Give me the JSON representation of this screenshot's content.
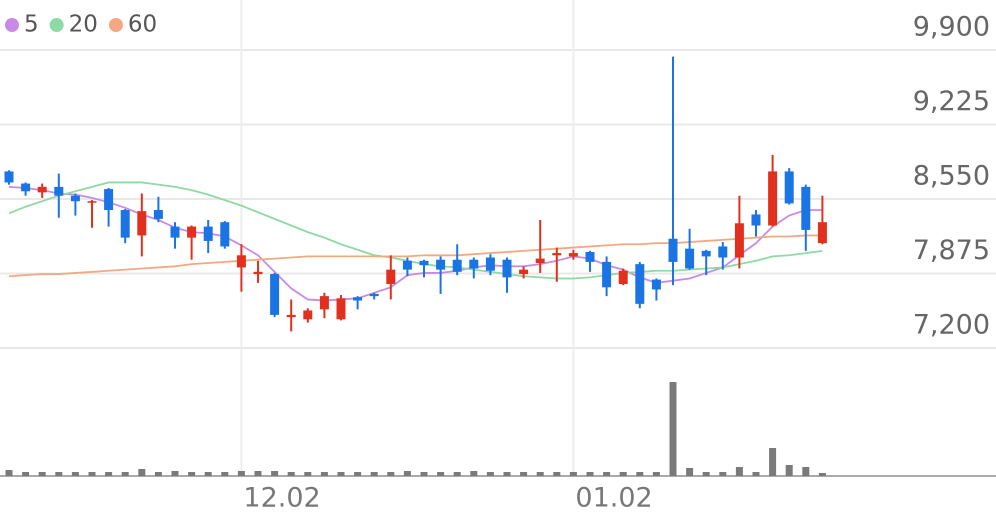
{
  "chart_data": {
    "type": "candlestick",
    "categories": [
      null,
      null,
      null,
      null,
      null,
      null,
      null,
      null,
      null,
      null,
      null,
      null,
      null,
      null,
      "12.02",
      null,
      null,
      null,
      null,
      null,
      null,
      null,
      null,
      null,
      null,
      null,
      null,
      null,
      null,
      null,
      null,
      null,
      null,
      null,
      "01.02",
      null,
      null,
      null,
      null,
      null,
      null,
      null,
      null,
      null,
      null,
      null,
      null,
      null,
      null,
      null
    ],
    "open": [
      8800,
      8690,
      8610,
      8660,
      8580,
      8520,
      8640,
      8450,
      8220,
      8450,
      8300,
      8200,
      8300,
      8340,
      7930,
      7870,
      7870,
      7480,
      7460,
      7550,
      7460,
      7660,
      7690,
      7780,
      7990,
      7990,
      8000,
      8000,
      8000,
      8020,
      8000,
      7870,
      7970,
      8040,
      8030,
      8070,
      7980,
      7780,
      7960,
      7820,
      8190,
      8100,
      8080,
      8120,
      8020,
      8410,
      8310,
      8800,
      8660,
      8150
    ],
    "high": [
      8810,
      8700,
      8690,
      8780,
      8600,
      8540,
      8650,
      8460,
      8600,
      8570,
      8340,
      8310,
      8360,
      8350,
      8140,
      7990,
      7880,
      7640,
      7560,
      7700,
      7680,
      7670,
      7700,
      8040,
      8020,
      8000,
      8030,
      8140,
      8020,
      8050,
      8020,
      7940,
      8360,
      8110,
      8090,
      8080,
      8030,
      7920,
      7980,
      7830,
      9840,
      8280,
      8090,
      8160,
      8580,
      8450,
      8950,
      8830,
      8680,
      8580
    ],
    "low": [
      8680,
      8580,
      8560,
      8380,
      8400,
      8290,
      8300,
      8150,
      8030,
      8340,
      8100,
      8000,
      8060,
      8100,
      7710,
      7790,
      7480,
      7350,
      7430,
      7470,
      7450,
      7550,
      7640,
      7640,
      7850,
      7840,
      7690,
      7860,
      7830,
      7860,
      7700,
      7830,
      7880,
      7800,
      8000,
      7890,
      7670,
      7770,
      7560,
      7630,
      7770,
      7910,
      7860,
      7910,
      7920,
      8210,
      8300,
      8500,
      8080,
      8140
    ],
    "close": [
      8700,
      8620,
      8660,
      8580,
      8530,
      8530,
      8450,
      8200,
      8440,
      8370,
      8200,
      8300,
      8170,
      8120,
      8040,
      7890,
      7500,
      7500,
      7540,
      7670,
      7650,
      7630,
      7670,
      7910,
      7910,
      7950,
      7910,
      7890,
      7920,
      7900,
      7840,
      7910,
      8010,
      8060,
      8060,
      7980,
      7750,
      7900,
      7600,
      7730,
      7980,
      7920,
      8030,
      8020,
      8330,
      8310,
      8800,
      8510,
      8270,
      8340
    ],
    "up_color": "#e2301f",
    "down_color": "#1b74e4",
    "series": [
      {
        "name": "5",
        "color": "#c98ae6",
        "values": [
          8660,
          8650,
          8630,
          8600,
          8590,
          8560,
          8520,
          8470,
          8410,
          8360,
          8290,
          8250,
          8240,
          8210,
          8130,
          8040,
          7890,
          7740,
          7640,
          7630,
          7640,
          7650,
          7700,
          7750,
          7860,
          7880,
          7880,
          7900,
          7930,
          7950,
          7940,
          7940,
          7960,
          7990,
          8030,
          8010,
          7950,
          7910,
          7840,
          7790,
          7810,
          7830,
          7880,
          7930,
          8040,
          8150,
          8300,
          8400,
          8450,
          8450
        ]
      },
      {
        "name": "20",
        "color": "#8fd9a4",
        "values": [
          8420,
          8480,
          8530,
          8580,
          8620,
          8660,
          8700,
          8700,
          8700,
          8680,
          8660,
          8630,
          8590,
          8540,
          8490,
          8430,
          8370,
          8310,
          8250,
          8200,
          8140,
          8090,
          8040,
          8020,
          7990,
          7960,
          7940,
          7930,
          7910,
          7890,
          7870,
          7850,
          7840,
          7830,
          7830,
          7840,
          7860,
          7880,
          7890,
          7900,
          7900,
          7910,
          7920,
          7930,
          7960,
          7990,
          8030,
          8040,
          8060,
          8080
        ]
      },
      {
        "name": "60",
        "color": "#f3a882",
        "values": [
          7850,
          7860,
          7870,
          7870,
          7880,
          7890,
          7900,
          7910,
          7920,
          7930,
          7940,
          7960,
          7970,
          7980,
          7990,
          8000,
          8010,
          8020,
          8030,
          8030,
          8030,
          8030,
          8030,
          8030,
          8030,
          8040,
          8040,
          8040,
          8050,
          8060,
          8070,
          8080,
          8090,
          8100,
          8110,
          8120,
          8130,
          8140,
          8140,
          8150,
          8150,
          8160,
          8170,
          8180,
          8190,
          8200,
          8210,
          8210,
          8220,
          8220
        ]
      }
    ],
    "ylim": [
      7200,
      9900
    ],
    "yticks": [
      {
        "value": 7200,
        "label": "7,200"
      },
      {
        "value": 7875,
        "label": "7,875"
      },
      {
        "value": 8550,
        "label": "8,550"
      },
      {
        "value": 9225,
        "label": "9,225"
      },
      {
        "value": 9900,
        "label": "9,900"
      }
    ],
    "grid": true,
    "legend": "top-left",
    "volume": {
      "color": "#7a7a7a",
      "ylim": [
        0,
        100
      ],
      "values": [
        6,
        4,
        4,
        4,
        4,
        4,
        4,
        4,
        7,
        4,
        5,
        4,
        4,
        4,
        5,
        5,
        5,
        4,
        4,
        4,
        4,
        4,
        4,
        4,
        5,
        4,
        4,
        4,
        5,
        4,
        4,
        4,
        4,
        4,
        4,
        4,
        4,
        4,
        4,
        4,
        94,
        8,
        4,
        4,
        9,
        4,
        28,
        11,
        9,
        3
      ]
    }
  }
}
